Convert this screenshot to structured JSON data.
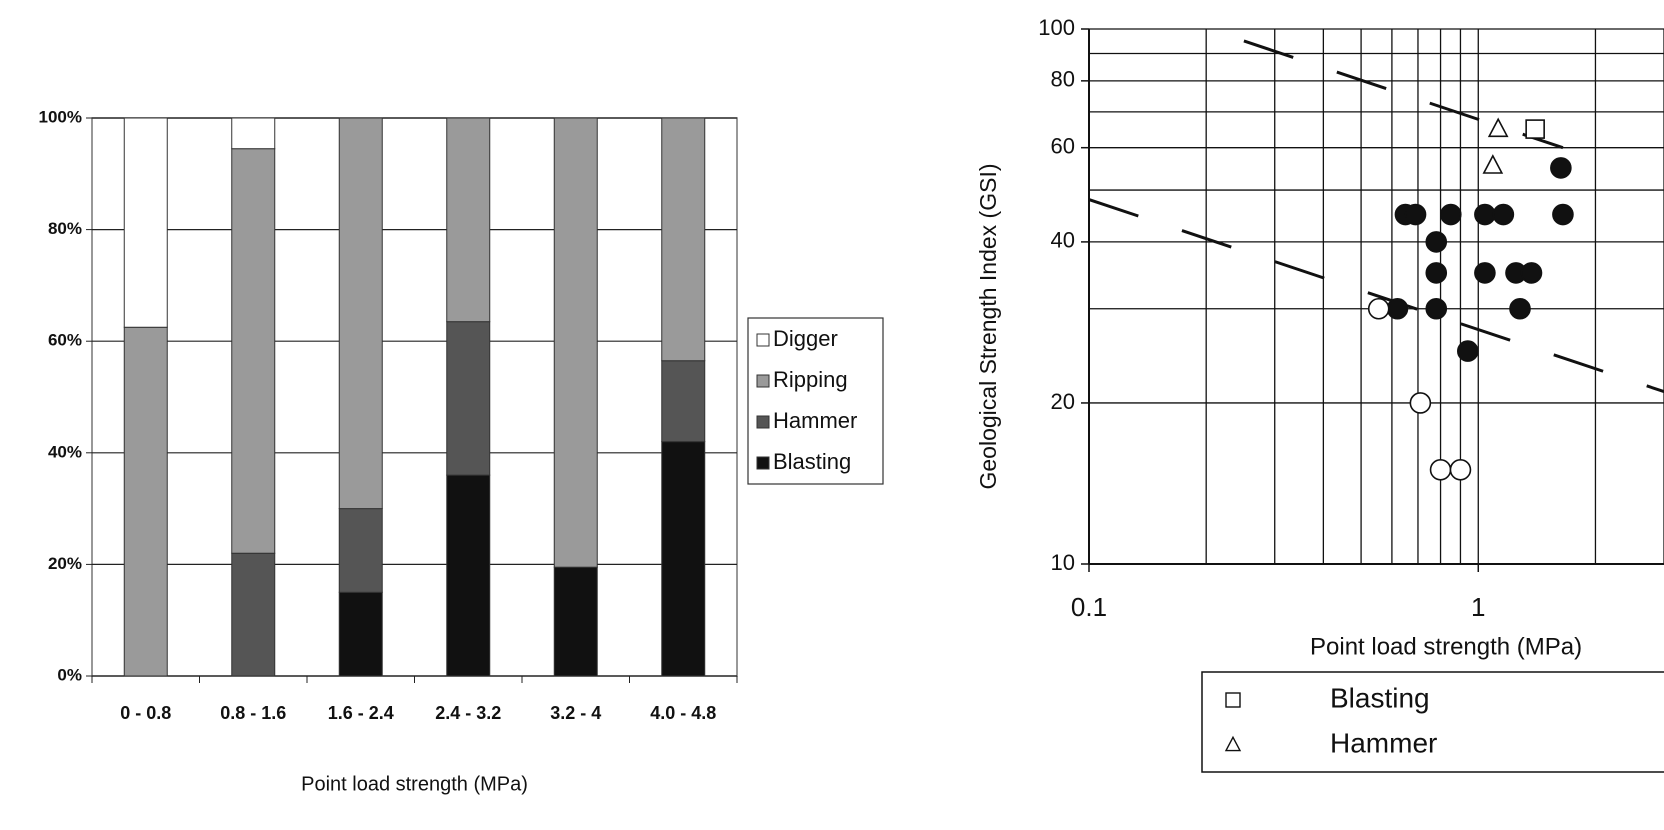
{
  "chart_data": [
    {
      "type": "bar",
      "stacked": true,
      "categories": [
        "0 - 0.8",
        "0.8 - 1.6",
        "1.6 - 2.4",
        "2.4 - 3.2",
        "3.2 - 4",
        "4.0 - 4.8"
      ],
      "series": [
        {
          "name": "Digger",
          "color": "#ffffff",
          "values": [
            37.5,
            5.5,
            0,
            0,
            0,
            0
          ]
        },
        {
          "name": "Ripping",
          "color": "#9a9a9a",
          "values": [
            62.5,
            72.5,
            70,
            36.5,
            80.5,
            43.5
          ]
        },
        {
          "name": "Hammer",
          "color": "#555555",
          "values": [
            0,
            22,
            15,
            27.5,
            0,
            14.5
          ]
        },
        {
          "name": "Blasting",
          "color": "#111111",
          "values": [
            0,
            0,
            15,
            36,
            19.5,
            42
          ]
        }
      ],
      "ylim": [
        0,
        100
      ],
      "yticks": [
        {
          "value": 0,
          "label": "0%"
        },
        {
          "value": 20,
          "label": "20%"
        },
        {
          "value": 40,
          "label": "40%"
        },
        {
          "value": 60,
          "label": "60%"
        },
        {
          "value": 80,
          "label": "80%"
        },
        {
          "value": 100,
          "label": "100%"
        }
      ],
      "xlabel": "Point load strength (MPa)",
      "grid": true
    },
    {
      "type": "scatter",
      "xscale": "log",
      "yscale": "log",
      "xlim": [
        0.1,
        3
      ],
      "ylim": [
        10,
        100
      ],
      "xticks": [
        0.1,
        1
      ],
      "yticks": [
        10,
        20,
        40,
        60,
        80,
        100
      ],
      "xgrid": [
        0.1,
        0.2,
        0.3,
        0.4,
        0.5,
        0.6,
        0.7,
        0.8,
        0.9,
        1,
        2,
        3
      ],
      "ygrid": [
        10,
        20,
        30,
        40,
        50,
        60,
        70,
        80,
        90,
        100
      ],
      "xlabel": "Point load strength (MPa)",
      "ylabel": "Geological Strength Index (GSI)",
      "series": [
        {
          "name": "Blasting",
          "marker": "square",
          "x": [
            1.4
          ],
          "values": [
            65
          ]
        },
        {
          "name": "Hammer",
          "marker": "triangle",
          "x": [
            1.125,
            1.09
          ],
          "values": [
            65,
            55.5
          ]
        },
        {
          "marker": "filled-circle",
          "x": [
            0.65,
            0.69,
            0.85,
            1.04,
            1.16,
            1.65,
            0.78,
            0.78,
            1.04,
            1.25,
            1.37,
            0.62,
            0.78,
            1.28,
            1.63,
            0.94
          ],
          "values": [
            45,
            45,
            45,
            45,
            45,
            45,
            40,
            35,
            35,
            35,
            35,
            30,
            30,
            30,
            55,
            25
          ]
        },
        {
          "marker": "open-circle",
          "x": [
            0.555,
            0.71,
            0.8,
            0.9
          ],
          "values": [
            30,
            20,
            15,
            15
          ]
        }
      ],
      "lines": [
        {
          "style": "dashed",
          "x": [
            0.25,
            1.65
          ],
          "values": [
            95,
            60
          ]
        },
        {
          "style": "dashed",
          "x": [
            0.1,
            3
          ],
          "values": [
            48,
            21
          ]
        }
      ]
    }
  ]
}
